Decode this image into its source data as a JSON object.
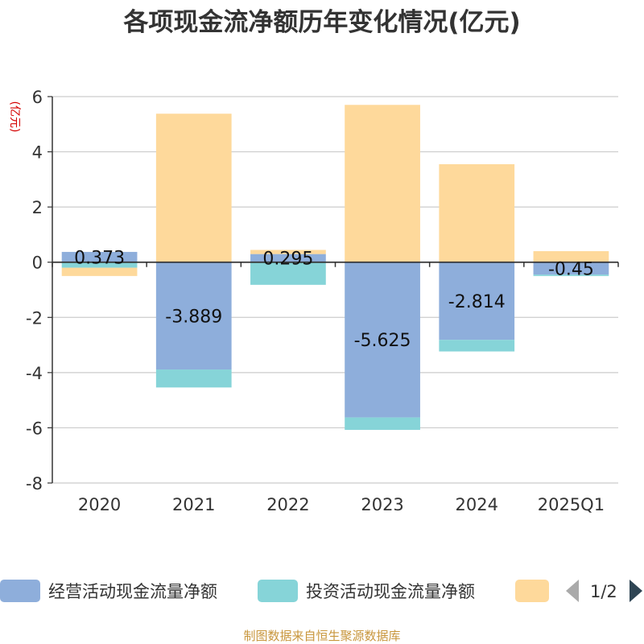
{
  "chart_data": {
    "type": "bar",
    "stacked": true,
    "title": "各项现金流净额历年变化情况(亿元)",
    "ylabel": "(亿元)",
    "ylim": [
      -8,
      6
    ],
    "yticks": [
      6,
      4,
      2,
      0,
      -2,
      -4,
      -6,
      -8
    ],
    "categories": [
      "2020",
      "2021",
      "2022",
      "2023",
      "2024",
      "2025Q1"
    ],
    "series": [
      {
        "name": "经营活动现金流量净额",
        "color": "#8eaedb",
        "values": [
          0.373,
          -3.889,
          0.295,
          -5.625,
          -2.814,
          -0.45
        ]
      },
      {
        "name": "投资活动现金流量净额",
        "color": "#86d4d8",
        "values": [
          -0.2,
          -0.65,
          -0.82,
          -0.45,
          -0.42,
          -0.05
        ]
      },
      {
        "name": "",
        "color": "#fed99b",
        "values": [
          -0.3,
          5.38,
          0.15,
          5.7,
          3.55,
          0.4
        ]
      }
    ],
    "data_labels": [
      "0.373",
      "-3.889",
      "0.295",
      "-5.625",
      "-2.814",
      "-0.45"
    ],
    "legend": {
      "position": "bottom",
      "page": "1/2"
    }
  },
  "source": "制图数据来自恒生聚源数据库"
}
